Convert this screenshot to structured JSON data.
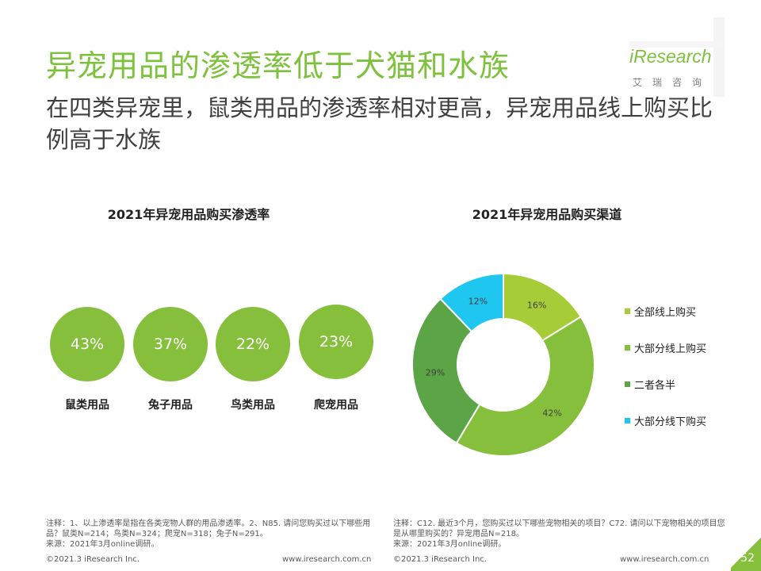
{
  "slide": {
    "title": "异宠用品的渗透率低于犬猫和水族",
    "subtitle": "在四类异宠里，鼠类用品的渗透率相对更高，异宠用品线上购买比例高于水族",
    "page_number": "52"
  },
  "logo": {
    "name": "iResearch",
    "cn": "艾瑞咨询"
  },
  "colors": {
    "accent": "#7ec13d",
    "bubble": "#86bf3b"
  },
  "penetration": {
    "title": "2021年异宠用品购买渗透率",
    "items": [
      {
        "value": "43%",
        "label": "鼠类用品"
      },
      {
        "value": "37%",
        "label": "兔子用品"
      },
      {
        "value": "22%",
        "label": "鸟类用品"
      },
      {
        "value": "23%",
        "label": "爬宠用品"
      }
    ]
  },
  "chart_data": {
    "type": "pie",
    "title": "2021年异宠用品购买渠道",
    "donut": true,
    "legend_position": "right",
    "slices": [
      {
        "label": "全部线上购买",
        "value": 16,
        "text": "16%",
        "color": "#a6cd37"
      },
      {
        "label": "大部分线上购买",
        "value": 42,
        "text": "42%",
        "color": "#86bf3b"
      },
      {
        "label": "二者各半",
        "value": 29,
        "text": "29%",
        "color": "#5ca546"
      },
      {
        "label": "大部分线下购买",
        "value": 12,
        "text": "12%",
        "color": "#1fc6f0"
      }
    ]
  },
  "notes": {
    "left": [
      "注释：1、以上渗透率是指在各类宠物人群的用品渗透率。2、N85. 请问您购买过以下哪些用品？鼠类N=214；鸟类N=324；爬宠N=318；兔子N=291。",
      "来源：2021年3月online调研。"
    ],
    "right": [
      "注释：C12. 最近3个月，您购买过以下哪些宠物相关的项目？C72. 请问以下宠物相关的项目您是从哪里购买的？异宠用品N=218。",
      "来源：2021年3月online调研。"
    ]
  },
  "footer": {
    "copyright": "©2021.3 iResearch Inc.",
    "website": "www.iresearch.com.cn"
  }
}
